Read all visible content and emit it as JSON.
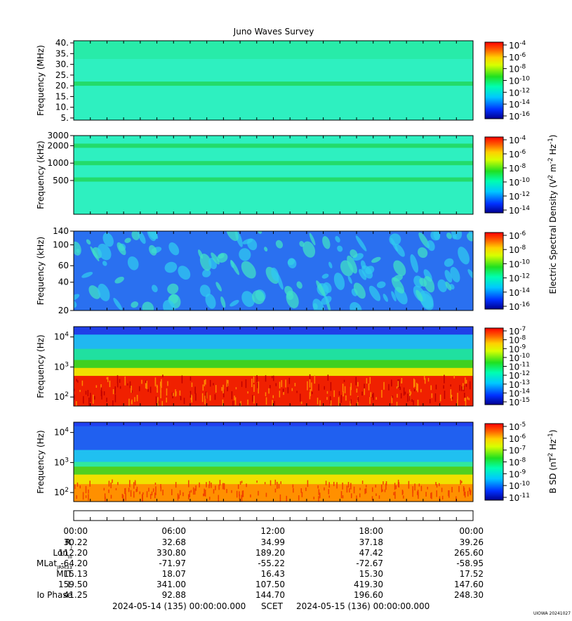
{
  "title": "Juno Waves Survey",
  "chart_data": [
    {
      "type": "heatmap",
      "panel": 1,
      "ylabel": "Frequency (MHz)",
      "yscale": "linear",
      "ylim": [
        4,
        41
      ],
      "yticks": [
        {
          "value": 5,
          "label": "5."
        },
        {
          "value": 10,
          "label": "10."
        },
        {
          "value": 15,
          "label": "15."
        },
        {
          "value": 20,
          "label": "20."
        },
        {
          "value": 25,
          "label": "25."
        },
        {
          "value": 30,
          "label": "30."
        },
        {
          "value": 35,
          "label": "35."
        },
        {
          "value": 40,
          "label": "40."
        }
      ],
      "bands": [
        {
          "value": 21,
          "level": 0.5
        }
      ],
      "colorbar": {
        "exponents": [
          "-4",
          "-6",
          "-8",
          "-10",
          "-12",
          "-14",
          "-16"
        ]
      }
    },
    {
      "type": "heatmap",
      "panel": 2,
      "ylabel": "Frequency (kHz)",
      "yscale": "log",
      "ylim": [
        130,
        3000
      ],
      "yticks": [
        {
          "value": 500,
          "label": "500"
        },
        {
          "value": 1000,
          "label": "1000"
        },
        {
          "value": 2000,
          "label": "2000"
        },
        {
          "value": 3000,
          "label": "3000"
        }
      ],
      "bands": [
        {
          "value": 2000,
          "level": 0.45
        },
        {
          "value": 1000,
          "level": 0.45
        },
        {
          "value": 520,
          "level": 0.5
        }
      ],
      "colorbar": {
        "exponents": [
          "-4",
          "-6",
          "-8",
          "-10",
          "-12",
          "-14"
        ]
      }
    },
    {
      "type": "heatmap",
      "panel": 3,
      "ylabel": "Frequency (kHz)",
      "yscale": "log",
      "ylim": [
        20,
        140
      ],
      "yticks": [
        {
          "value": 20,
          "label": "20"
        },
        {
          "value": 40,
          "label": "40"
        },
        {
          "value": 60,
          "label": "60"
        },
        {
          "value": 100,
          "label": "100"
        },
        {
          "value": 140,
          "label": "140"
        }
      ],
      "colorbar": {
        "exponents": [
          "-6",
          "-8",
          "-10",
          "-12",
          "-14",
          "-16"
        ]
      }
    },
    {
      "type": "heatmap",
      "panel": 4,
      "ylabel": "Frequency (Hz)",
      "yscale": "log",
      "ylim": [
        50,
        22000
      ],
      "yticks": [
        {
          "value": 100,
          "label": "10",
          "sup": "2"
        },
        {
          "value": 1000,
          "label": "10",
          "sup": "3"
        },
        {
          "value": 10000,
          "label": "10",
          "sup": "4"
        }
      ],
      "colorbar": {
        "exponents": [
          "-7",
          "-8",
          "-9",
          "-10",
          "-11",
          "-12",
          "-13",
          "-14",
          "-15"
        ]
      }
    },
    {
      "type": "heatmap",
      "panel": 5,
      "ylabel": "Frequency (Hz)",
      "yscale": "log",
      "ylim": [
        50,
        22000
      ],
      "yticks": [
        {
          "value": 100,
          "label": "10",
          "sup": "2"
        },
        {
          "value": 1000,
          "label": "10",
          "sup": "3"
        },
        {
          "value": 10000,
          "label": "10",
          "sup": "4"
        }
      ],
      "colorbar": {
        "exponents": [
          "-5",
          "-6",
          "-7",
          "-8",
          "-9",
          "-10",
          "-11"
        ]
      }
    }
  ],
  "colorbar_labels": {
    "electric_main": "Electric Spectral Density (V",
    "electric_sup1": "2",
    "electric_mid": " m",
    "electric_sup2": "-2",
    "electric_mid2": " Hz",
    "electric_sup3": "-1",
    "electric_end": ")",
    "magnetic_main": "B SD (nT",
    "magnetic_sup1": "2",
    "magnetic_mid": " Hz",
    "magnetic_sup2": "-1",
    "magnetic_end": ")",
    "base": "10"
  },
  "time_axis": {
    "labels": [
      "00:00",
      "06:00",
      "12:00",
      "18:00",
      "00:00"
    ]
  },
  "ephemeris": [
    {
      "label": "R",
      "sub": "J",
      "values": [
        "30.22",
        "32.68",
        "34.99",
        "37.18",
        "39.26"
      ]
    },
    {
      "label": "Lon",
      "sub": "III",
      "values": [
        "112.20",
        "330.80",
        "189.20",
        "47.42",
        "265.60"
      ]
    },
    {
      "label": "MLat",
      "sub": "JRM33",
      "values": [
        "-64.20",
        "-71.97",
        "-55.22",
        "-72.67",
        "-58.95"
      ]
    },
    {
      "label": "MLT",
      "sub": "",
      "values": [
        "15.13",
        "18.07",
        "16.43",
        "15.30",
        "17.52"
      ]
    },
    {
      "label": "L",
      "sub": "",
      "values": [
        "159.50",
        "341.00",
        "107.50",
        "419.30",
        "147.60"
      ]
    },
    {
      "label": "Io Phase",
      "sub": "",
      "values": [
        "41.25",
        "92.88",
        "144.70",
        "196.60",
        "248.30"
      ]
    }
  ],
  "footer": {
    "start": "2024-05-14 (135) 00:00:00.000",
    "scet": "SCET",
    "end": "2024-05-15 (136) 00:00:00.000",
    "stamp": "UIOWA 20241027"
  }
}
